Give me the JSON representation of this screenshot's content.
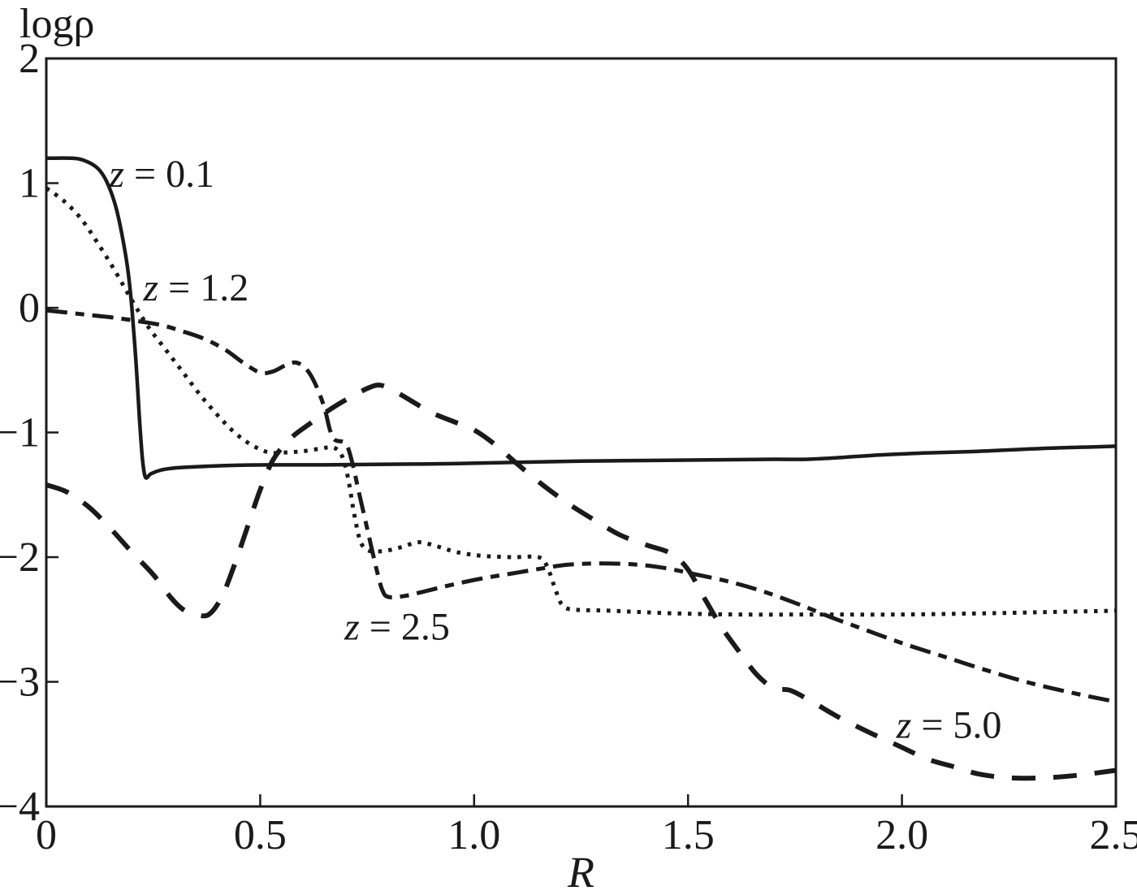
{
  "figure": {
    "background": "#ffffff",
    "ink": "#1a1a1a"
  },
  "chart_data": {
    "type": "line",
    "title": "",
    "ylabel": "logρ",
    "xlabel": "R",
    "xlim": [
      0,
      2.5
    ],
    "ylim": [
      -4,
      2
    ],
    "grid": false,
    "legend": "inline-curve-labels",
    "x_ticks": [
      {
        "v": 0.0,
        "label": "0"
      },
      {
        "v": 0.5,
        "label": "0.5"
      },
      {
        "v": 1.0,
        "label": "1.0"
      },
      {
        "v": 1.5,
        "label": "1.5"
      },
      {
        "v": 2.0,
        "label": "2.0"
      },
      {
        "v": 2.5,
        "label": "2.5"
      }
    ],
    "y_ticks": [
      {
        "v": 2,
        "label": "2"
      },
      {
        "v": 1,
        "label": "1"
      },
      {
        "v": 0,
        "label": "0"
      },
      {
        "v": -1,
        "label": "−1"
      },
      {
        "v": -2,
        "label": "−2"
      },
      {
        "v": -3,
        "label": "−3"
      },
      {
        "v": -4,
        "label": "−4"
      }
    ],
    "series": [
      {
        "name": "z = 0.1",
        "slug": "z-0-1",
        "style": "solid",
        "width": 4.5,
        "dash": [],
        "label": {
          "text": "z = 0.1",
          "x": 0.27,
          "y": 0.97
        },
        "points": [
          [
            0,
            1.2
          ],
          [
            0.06,
            1.2
          ],
          [
            0.09,
            1.18
          ],
          [
            0.12,
            1.12
          ],
          [
            0.14,
            1.02
          ],
          [
            0.16,
            0.84
          ],
          [
            0.175,
            0.62
          ],
          [
            0.19,
            0.32
          ],
          [
            0.2,
            0.0
          ],
          [
            0.21,
            -0.45
          ],
          [
            0.218,
            -0.9
          ],
          [
            0.225,
            -1.22
          ],
          [
            0.232,
            -1.36
          ],
          [
            0.245,
            -1.33
          ],
          [
            0.27,
            -1.3
          ],
          [
            0.3,
            -1.285
          ],
          [
            0.35,
            -1.275
          ],
          [
            0.42,
            -1.265
          ],
          [
            0.52,
            -1.26
          ],
          [
            0.65,
            -1.26
          ],
          [
            0.8,
            -1.255
          ],
          [
            0.95,
            -1.25
          ],
          [
            1.1,
            -1.24
          ],
          [
            1.25,
            -1.23
          ],
          [
            1.4,
            -1.225
          ],
          [
            1.55,
            -1.22
          ],
          [
            1.7,
            -1.215
          ],
          [
            1.78,
            -1.215
          ],
          [
            1.86,
            -1.2
          ],
          [
            1.95,
            -1.18
          ],
          [
            2.05,
            -1.165
          ],
          [
            2.15,
            -1.155
          ],
          [
            2.25,
            -1.14
          ],
          [
            2.35,
            -1.125
          ],
          [
            2.45,
            -1.115
          ],
          [
            2.5,
            -1.11
          ]
        ]
      },
      {
        "name": "z = 1.2",
        "slug": "z-1-2",
        "style": "dotted",
        "width": 5,
        "dash": [
          4.5,
          8
        ],
        "label": {
          "text": "z = 1.2",
          "x": 0.35,
          "y": 0.06
        },
        "points": [
          [
            0,
            0.96
          ],
          [
            0.04,
            0.86
          ],
          [
            0.08,
            0.72
          ],
          [
            0.12,
            0.52
          ],
          [
            0.16,
            0.3
          ],
          [
            0.2,
            0.06
          ],
          [
            0.24,
            -0.16
          ],
          [
            0.28,
            -0.34
          ],
          [
            0.32,
            -0.52
          ],
          [
            0.36,
            -0.7
          ],
          [
            0.4,
            -0.86
          ],
          [
            0.44,
            -1.0
          ],
          [
            0.48,
            -1.1
          ],
          [
            0.52,
            -1.16
          ],
          [
            0.56,
            -1.16
          ],
          [
            0.6,
            -1.15
          ],
          [
            0.64,
            -1.13
          ],
          [
            0.67,
            -1.12
          ],
          [
            0.69,
            -1.18
          ],
          [
            0.705,
            -1.36
          ],
          [
            0.72,
            -1.66
          ],
          [
            0.735,
            -1.88
          ],
          [
            0.755,
            -1.95
          ],
          [
            0.79,
            -1.95
          ],
          [
            0.83,
            -1.92
          ],
          [
            0.87,
            -1.88
          ],
          [
            0.91,
            -1.91
          ],
          [
            0.96,
            -1.96
          ],
          [
            1.02,
            -1.99
          ],
          [
            1.09,
            -2.0
          ],
          [
            1.15,
            -2.0
          ],
          [
            1.17,
            -2.07
          ],
          [
            1.19,
            -2.26
          ],
          [
            1.205,
            -2.38
          ],
          [
            1.23,
            -2.42
          ],
          [
            1.32,
            -2.43
          ],
          [
            1.46,
            -2.45
          ],
          [
            1.62,
            -2.46
          ],
          [
            1.8,
            -2.46
          ],
          [
            2.0,
            -2.46
          ],
          [
            2.2,
            -2.45
          ],
          [
            2.35,
            -2.44
          ],
          [
            2.5,
            -2.43
          ]
        ]
      },
      {
        "name": "z = 2.5",
        "slug": "z-2-5",
        "style": "dash-dot",
        "width": 5,
        "dash": [
          26,
          10,
          11,
          10
        ],
        "label": {
          "text": "z = 2.5",
          "x": 0.82,
          "y": -2.66
        },
        "points": [
          [
            0,
            -0.02
          ],
          [
            0.08,
            -0.05
          ],
          [
            0.16,
            -0.08
          ],
          [
            0.22,
            -0.11
          ],
          [
            0.27,
            -0.14
          ],
          [
            0.32,
            -0.19
          ],
          [
            0.37,
            -0.25
          ],
          [
            0.42,
            -0.34
          ],
          [
            0.46,
            -0.44
          ],
          [
            0.5,
            -0.52
          ],
          [
            0.53,
            -0.51
          ],
          [
            0.56,
            -0.46
          ],
          [
            0.585,
            -0.44
          ],
          [
            0.61,
            -0.5
          ],
          [
            0.63,
            -0.62
          ],
          [
            0.65,
            -0.8
          ],
          [
            0.663,
            -0.98
          ],
          [
            0.675,
            -1.06
          ],
          [
            0.7,
            -1.09
          ],
          [
            0.715,
            -1.24
          ],
          [
            0.73,
            -1.47
          ],
          [
            0.75,
            -1.77
          ],
          [
            0.77,
            -2.07
          ],
          [
            0.785,
            -2.26
          ],
          [
            0.8,
            -2.32
          ],
          [
            0.84,
            -2.31
          ],
          [
            0.89,
            -2.27
          ],
          [
            0.95,
            -2.22
          ],
          [
            1.02,
            -2.17
          ],
          [
            1.09,
            -2.13
          ],
          [
            1.16,
            -2.09
          ],
          [
            1.22,
            -2.06
          ],
          [
            1.3,
            -2.05
          ],
          [
            1.38,
            -2.06
          ],
          [
            1.45,
            -2.09
          ],
          [
            1.52,
            -2.14
          ],
          [
            1.6,
            -2.2
          ],
          [
            1.68,
            -2.28
          ],
          [
            1.76,
            -2.38
          ],
          [
            1.84,
            -2.49
          ],
          [
            1.92,
            -2.59
          ],
          [
            2.0,
            -2.69
          ],
          [
            2.1,
            -2.8
          ],
          [
            2.2,
            -2.91
          ],
          [
            2.3,
            -3.01
          ],
          [
            2.4,
            -3.09
          ],
          [
            2.5,
            -3.16
          ]
        ]
      },
      {
        "name": "z = 5.0",
        "slug": "z-5-0",
        "style": "long-dash",
        "width": 6,
        "dash": [
          29,
          22
        ],
        "label": {
          "text": "z = 5.0",
          "x": 2.11,
          "y": -3.45
        },
        "points": [
          [
            0,
            -1.42
          ],
          [
            0.05,
            -1.48
          ],
          [
            0.1,
            -1.6
          ],
          [
            0.15,
            -1.77
          ],
          [
            0.2,
            -1.96
          ],
          [
            0.25,
            -2.14
          ],
          [
            0.29,
            -2.32
          ],
          [
            0.32,
            -2.42
          ],
          [
            0.35,
            -2.46
          ],
          [
            0.38,
            -2.46
          ],
          [
            0.41,
            -2.32
          ],
          [
            0.44,
            -2.06
          ],
          [
            0.47,
            -1.76
          ],
          [
            0.5,
            -1.46
          ],
          [
            0.53,
            -1.22
          ],
          [
            0.57,
            -1.05
          ],
          [
            0.62,
            -0.92
          ],
          [
            0.67,
            -0.8
          ],
          [
            0.72,
            -0.7
          ],
          [
            0.755,
            -0.64
          ],
          [
            0.78,
            -0.62
          ],
          [
            0.81,
            -0.66
          ],
          [
            0.85,
            -0.74
          ],
          [
            0.9,
            -0.84
          ],
          [
            0.95,
            -0.91
          ],
          [
            1.0,
            -0.98
          ],
          [
            1.05,
            -1.1
          ],
          [
            1.1,
            -1.25
          ],
          [
            1.16,
            -1.42
          ],
          [
            1.22,
            -1.57
          ],
          [
            1.28,
            -1.7
          ],
          [
            1.34,
            -1.82
          ],
          [
            1.4,
            -1.9
          ],
          [
            1.46,
            -1.97
          ],
          [
            1.5,
            -2.1
          ],
          [
            1.54,
            -2.34
          ],
          [
            1.58,
            -2.57
          ],
          [
            1.62,
            -2.76
          ],
          [
            1.66,
            -2.94
          ],
          [
            1.7,
            -3.05
          ],
          [
            1.74,
            -3.07
          ],
          [
            1.79,
            -3.16
          ],
          [
            1.85,
            -3.28
          ],
          [
            1.92,
            -3.4
          ],
          [
            1.99,
            -3.51
          ],
          [
            2.06,
            -3.62
          ],
          [
            2.12,
            -3.68
          ],
          [
            2.18,
            -3.74
          ],
          [
            2.25,
            -3.77
          ],
          [
            2.33,
            -3.77
          ],
          [
            2.41,
            -3.75
          ],
          [
            2.5,
            -3.71
          ]
        ]
      }
    ]
  }
}
